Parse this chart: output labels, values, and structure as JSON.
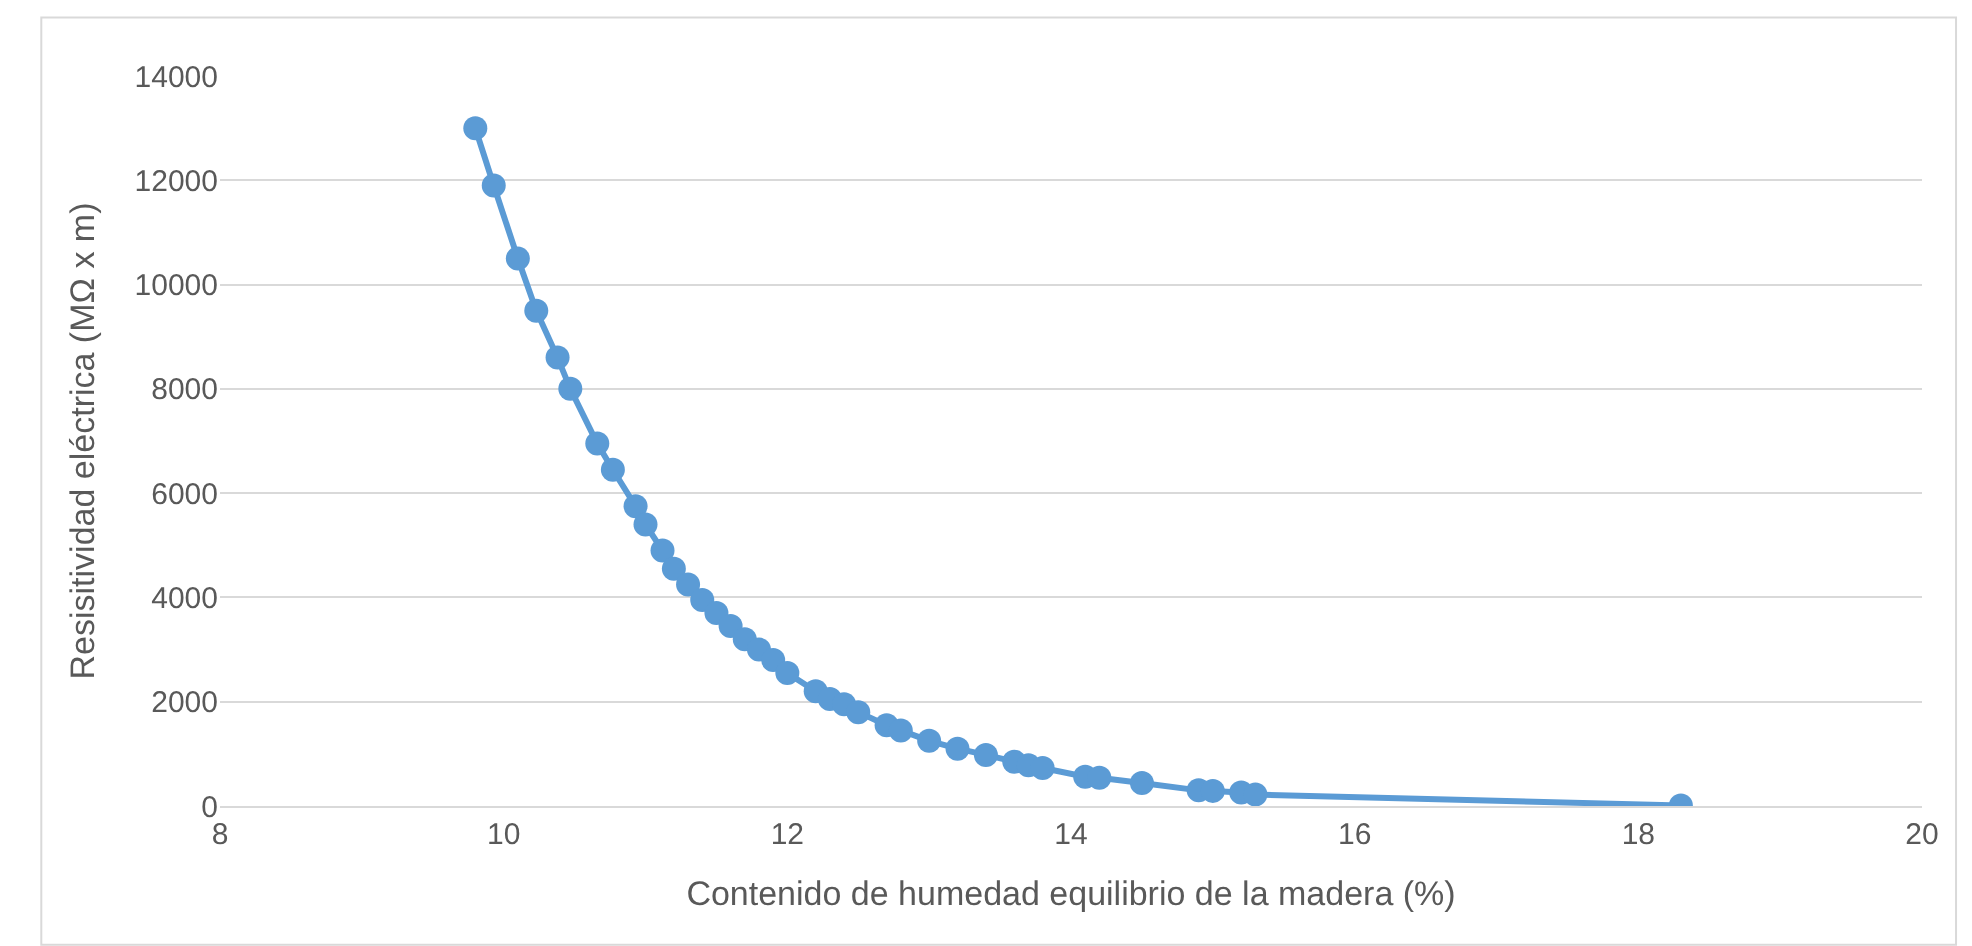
{
  "chart_data": {
    "type": "line",
    "xlabel": "Contenido de humedad equilibrio de la madera (%)",
    "ylabel": "Resisitividad eléctrica (MΩ x m)",
    "series": [
      {
        "color": "#5b9bd5",
        "x": [
          9.8,
          9.93,
          10.1,
          10.23,
          10.38,
          10.47,
          10.66,
          10.77,
          10.93,
          11.0,
          11.12,
          11.2,
          11.3,
          11.4,
          11.5,
          11.6,
          11.7,
          11.8,
          11.9,
          12.0,
          12.2,
          12.3,
          12.4,
          12.5,
          12.7,
          12.8,
          13.0,
          13.2,
          13.4,
          13.6,
          13.7,
          13.8,
          14.1,
          14.2,
          14.5,
          14.9,
          15.0,
          15.2,
          15.3,
          18.3
        ],
        "values": [
          13000,
          11900,
          10500,
          9500,
          8600,
          8000,
          6950,
          6450,
          5750,
          5400,
          4900,
          4550,
          4250,
          3950,
          3700,
          3450,
          3200,
          3000,
          2800,
          2550,
          2200,
          2050,
          1950,
          1800,
          1550,
          1450,
          1250,
          1100,
          980,
          850,
          780,
          730,
          560,
          540,
          440,
          300,
          290,
          260,
          220,
          10
        ]
      }
    ],
    "xlim": [
      8,
      20
    ],
    "xticks": [
      8,
      10,
      12,
      14,
      16,
      18,
      20
    ],
    "ylim": [
      0,
      14000
    ],
    "yticks": [
      0,
      2000,
      4000,
      6000,
      8000,
      10000,
      12000,
      14000
    ],
    "grid": "y",
    "legend": false,
    "marker": "circle",
    "line_style": "solid"
  }
}
